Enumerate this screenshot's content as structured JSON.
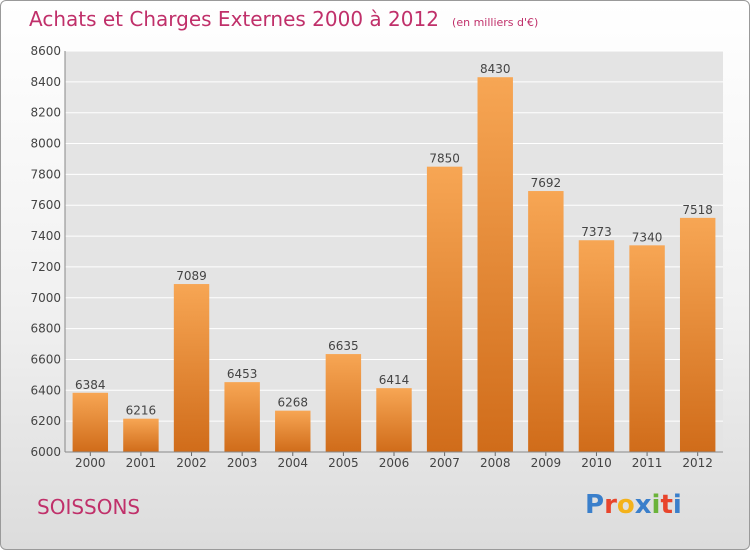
{
  "title": "Achats et Charges Externes 2000 à 2012",
  "unit": "(en milliers d'€)",
  "city": "SOISSONS",
  "logo": {
    "text": "Proxiti",
    "letters": [
      "P",
      "r",
      "o",
      "x",
      "i",
      "t",
      "i"
    ],
    "colors": [
      "#3a7fcb",
      "#e8452c",
      "#f4b21a",
      "#3a7fcb",
      "#6bb33a",
      "#e8452c",
      "#3a7fcb"
    ]
  },
  "colors": {
    "title": "#c0306a",
    "bar_top": "#f7a654",
    "bar_bottom": "#d06c1a",
    "grid": "#ffffff",
    "plot_bg": "#e4e4e4"
  },
  "chart_data": {
    "type": "bar",
    "title": "Achats et Charges Externes 2000 à 2012",
    "categories": [
      "2000",
      "2001",
      "2002",
      "2003",
      "2004",
      "2005",
      "2006",
      "2007",
      "2008",
      "2009",
      "2010",
      "2011",
      "2012"
    ],
    "values": [
      6384,
      6216,
      7089,
      6453,
      6268,
      6635,
      6414,
      7850,
      8430,
      7692,
      7373,
      7340,
      7518
    ],
    "ylim": [
      6000,
      8600
    ],
    "yticks": [
      6000,
      6200,
      6400,
      6600,
      6800,
      7000,
      7200,
      7400,
      7600,
      7800,
      8000,
      8200,
      8400,
      8600
    ],
    "grid": true
  }
}
